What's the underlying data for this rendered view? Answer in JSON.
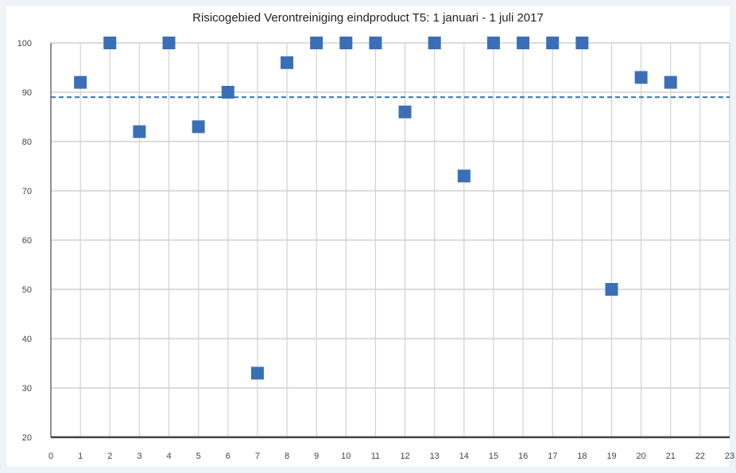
{
  "chart_data": {
    "type": "scatter",
    "title": "Risicogebied Verontreiniging eindproduct T5: 1 januari - 1 juli 2017",
    "xlabel": "",
    "ylabel": "",
    "xlim": [
      0,
      23
    ],
    "ylim": [
      20,
      100
    ],
    "x_ticks": [
      "0",
      "1",
      "2",
      "3",
      "4",
      "5",
      "6",
      "7",
      "8",
      "9",
      "10",
      "11",
      "12",
      "13",
      "14",
      "15",
      "16",
      "17",
      "18",
      "19",
      "20",
      "21",
      "22",
      "23"
    ],
    "y_ticks": [
      "20",
      "30",
      "40",
      "50",
      "60",
      "70",
      "80",
      "90",
      "100"
    ],
    "grid": true,
    "reference_line": {
      "value": 89,
      "style": "dashed",
      "color": "#2e75b6"
    },
    "series": [
      {
        "color": "#3a6fb7",
        "marker": "square",
        "x": [
          1,
          2,
          3,
          4,
          5,
          6,
          7,
          8,
          9,
          10,
          11,
          12,
          13,
          14,
          15,
          16,
          17,
          18,
          19,
          20,
          21
        ],
        "y": [
          92,
          100,
          82,
          100,
          83,
          90,
          33,
          96,
          100,
          100,
          100,
          86,
          100,
          73,
          100,
          100,
          100,
          100,
          50,
          93,
          92
        ]
      }
    ]
  }
}
